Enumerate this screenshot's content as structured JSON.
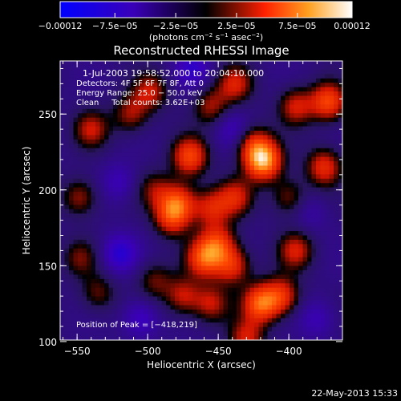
{
  "chart_data": {
    "type": "heatmap",
    "title": "Reconstructed RHESSI Image",
    "xlabel": "Heliocentric X (arcsec)",
    "ylabel": "Heliocentric Y (arcsec)",
    "xlim": [
      -562,
      -362
    ],
    "ylim": [
      101,
      285
    ],
    "xticks": [
      -550,
      -500,
      -450,
      -400
    ],
    "yticks": [
      100,
      150,
      200,
      250
    ],
    "xtick_labels": [
      "−550",
      "−500",
      "−450",
      "−400"
    ],
    "ytick_labels": [
      "100",
      "150",
      "200",
      "250"
    ],
    "colorbar": {
      "range": [
        -0.00012,
        0.00012
      ],
      "ticks": [
        -0.00012,
        -7.5e-05,
        -2.5e-05,
        2.5e-05,
        7.5e-05,
        0.00012
      ],
      "tick_labels": [
        "−0.00012",
        "−7.5e−05",
        "−2.5e−05",
        "2.5e−05",
        "7.5e−05",
        "0.00012"
      ],
      "units_main": "(photons cm",
      "units_exp1": "−2",
      "units_mid": " s",
      "units_exp2": "−1",
      "units_end": " asec",
      "units_exp3": "−2",
      "units_close": ")"
    },
    "annotations": {
      "time": "1-Jul-2003 19:58:52.000 to 20:04:10.000",
      "detectors": "Detectors: 4F 5F 6F 7F 8F, Att 0",
      "energy": "Energy Range: 25.0 − 50.0 keV",
      "clean": "Clean     Total counts: 3.62E+03",
      "peak": "Position of Peak = [−418,219]"
    },
    "blobs": [
      {
        "x": -418,
        "y": 219,
        "v": 0.00012
      },
      {
        "x": -425,
        "y": 230,
        "v": 6e-05
      },
      {
        "x": -470,
        "y": 222,
        "v": 8.5e-05
      },
      {
        "x": -438,
        "y": 270,
        "v": 6e-05
      },
      {
        "x": -455,
        "y": 255,
        "v": 5e-05
      },
      {
        "x": -498,
        "y": 265,
        "v": 5.5e-05
      },
      {
        "x": -512,
        "y": 250,
        "v": 5e-05
      },
      {
        "x": -540,
        "y": 240,
        "v": 5.5e-05
      },
      {
        "x": -548,
        "y": 195,
        "v": 5e-05
      },
      {
        "x": -495,
        "y": 200,
        "v": 4e-05
      },
      {
        "x": -478,
        "y": 192,
        "v": 7.5e-05
      },
      {
        "x": -483,
        "y": 182,
        "v": 7e-05
      },
      {
        "x": -455,
        "y": 188,
        "v": 6e-05
      },
      {
        "x": -438,
        "y": 195,
        "v": 6e-05
      },
      {
        "x": -450,
        "y": 165,
        "v": 7e-05
      },
      {
        "x": -460,
        "y": 155,
        "v": 8.5e-05
      },
      {
        "x": -440,
        "y": 150,
        "v": 7e-05
      },
      {
        "x": -420,
        "y": 125,
        "v": 9.5e-05
      },
      {
        "x": -405,
        "y": 130,
        "v": 7e-05
      },
      {
        "x": -395,
        "y": 160,
        "v": 6e-05
      },
      {
        "x": -375,
        "y": 215,
        "v": 7e-05
      },
      {
        "x": -372,
        "y": 258,
        "v": 8.5e-05
      },
      {
        "x": -395,
        "y": 255,
        "v": 6e-05
      },
      {
        "x": -495,
        "y": 140,
        "v": 4e-05
      },
      {
        "x": -475,
        "y": 130,
        "v": 5.5e-05
      },
      {
        "x": -455,
        "y": 125,
        "v": 5.5e-05
      },
      {
        "x": -548,
        "y": 155,
        "v": 4e-05
      },
      {
        "x": -535,
        "y": 132,
        "v": 4e-05
      },
      {
        "x": -400,
        "y": 195,
        "v": 4.5e-05
      },
      {
        "x": -430,
        "y": 102,
        "v": 6e-05
      },
      {
        "x": -520,
        "y": 158,
        "v": -5e-05
      },
      {
        "x": -505,
        "y": 115,
        "v": -4e-05
      },
      {
        "x": -468,
        "y": 280,
        "v": -4e-05
      },
      {
        "x": -520,
        "y": 205,
        "v": -3e-05
      },
      {
        "x": -440,
        "y": 240,
        "v": -3e-05
      },
      {
        "x": -380,
        "y": 115,
        "v": -3e-05
      },
      {
        "x": -385,
        "y": 185,
        "v": -2e-05
      }
    ]
  },
  "footer": {
    "date": "22-May-2013 15:33"
  }
}
